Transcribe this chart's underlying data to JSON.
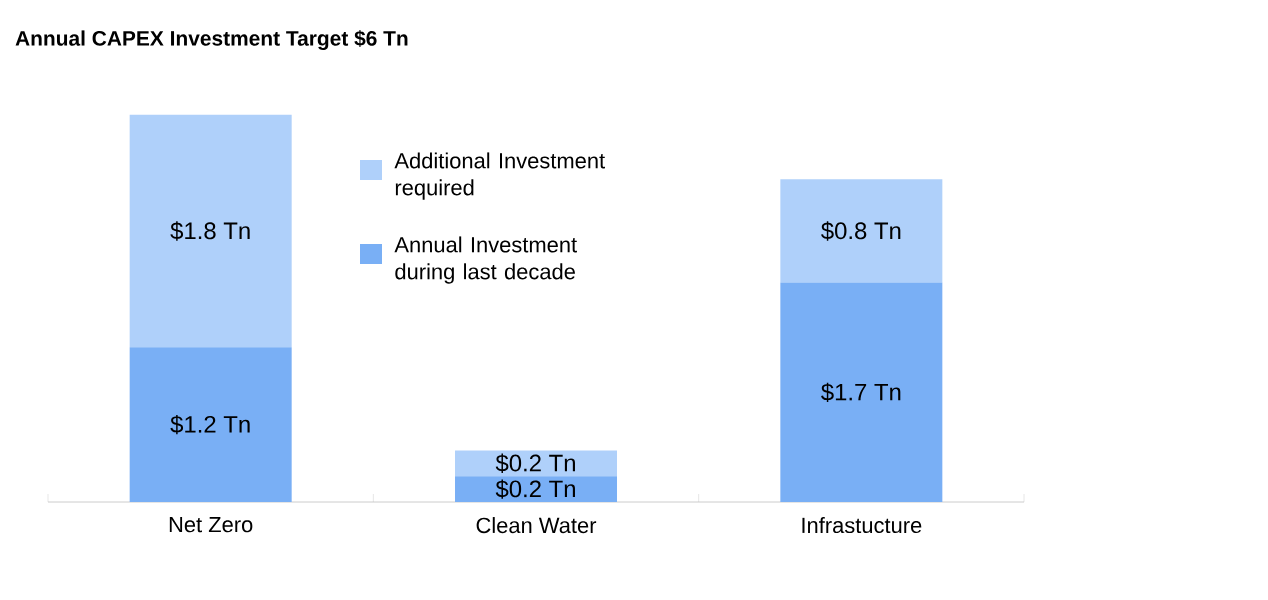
{
  "chart_data": {
    "type": "bar",
    "title": "Annual CAPEX Investment Target $6 Tn",
    "categories": [
      "Net Zero",
      "Clean Water",
      "Infrastucture"
    ],
    "stacked": true,
    "series": [
      {
        "name": "Annual Investment during last decade",
        "color": "#79aff5",
        "values": [
          1.2,
          0.2,
          1.7
        ],
        "value_labels": [
          "$1.2 Tn",
          "$0.2 Tn",
          "$1.7 Tn"
        ]
      },
      {
        "name": "Additional Investment required",
        "color": "#afd0fa",
        "values": [
          1.8,
          0.2,
          0.8
        ],
        "value_labels": [
          "$1.8 Tn",
          "$0.2 Tn",
          "$0.8 Tn"
        ]
      }
    ],
    "legend": "top"
  }
}
